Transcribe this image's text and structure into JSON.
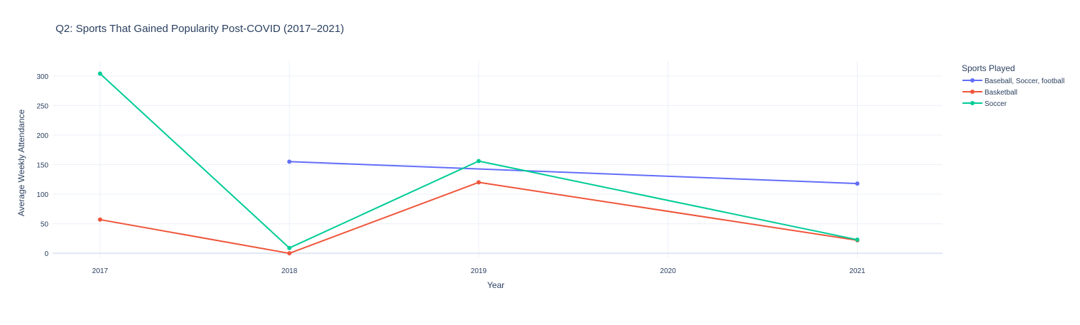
{
  "chart_data": {
    "type": "line",
    "title": "Q2: Sports That Gained Popularity Post-COVID (2017–2021)",
    "xlabel": "Year",
    "ylabel": "Average Weekly Attendance",
    "x_ticks": [
      2017,
      2018,
      2019,
      2020,
      2021
    ],
    "y_ticks": [
      0,
      50,
      100,
      150,
      200,
      250,
      300
    ],
    "xlim": [
      2016.75,
      2021.45
    ],
    "ylim": [
      -7,
      325
    ],
    "grid": true,
    "legend_title": "Sports Played",
    "legend_position": "top-right outside",
    "series": [
      {
        "name": "Baseball, Soccer, football",
        "color": "#636efa",
        "x": [
          2018,
          2021
        ],
        "y": [
          155,
          118
        ]
      },
      {
        "name": "Basketball",
        "color": "#ef553b",
        "x": [
          2017,
          2018,
          2019,
          2021
        ],
        "y": [
          57,
          0,
          120,
          22
        ]
      },
      {
        "name": "Soccer",
        "color": "#00cc96",
        "x": [
          2017,
          2018,
          2019,
          2021
        ],
        "y": [
          304,
          9,
          156,
          23
        ]
      }
    ]
  }
}
